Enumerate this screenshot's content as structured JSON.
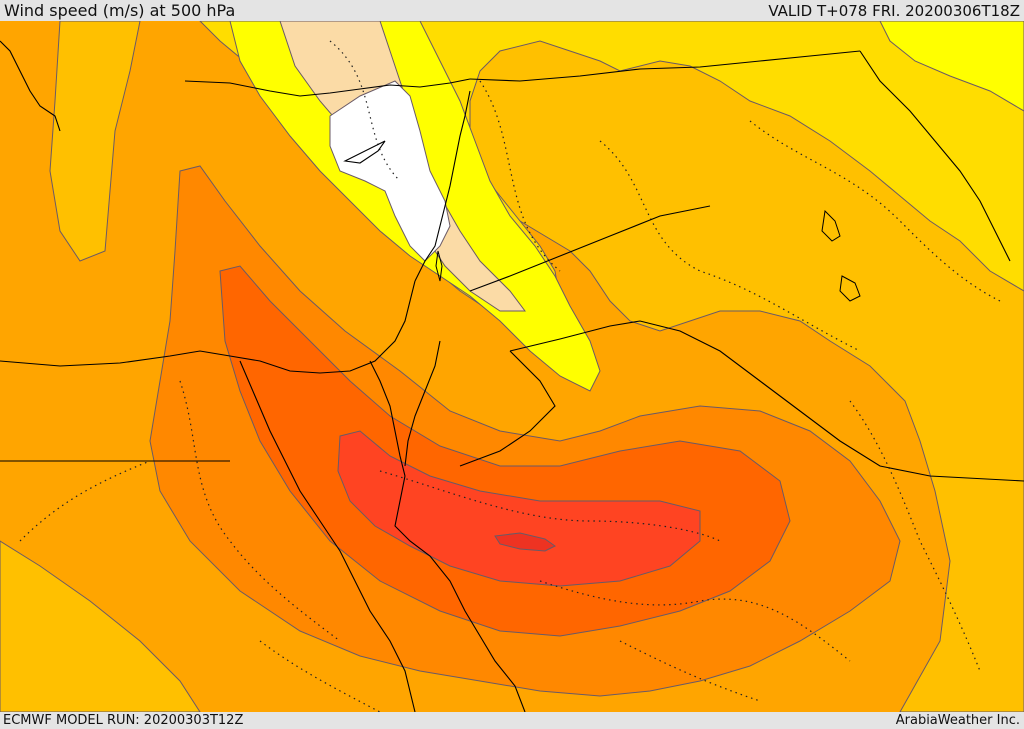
{
  "header": {
    "title": "Wind speed (m/s) at 500 hPa",
    "valid_time": "VALID T+078 FRI. 20200306T18Z"
  },
  "footer": {
    "model_run": "ECMWF MODEL RUN: 20200303T12Z",
    "provider": "ArabiaWeather Inc."
  },
  "colors": {
    "background": "#ffa500",
    "band_light_yellow": "#ffff00",
    "band_yellow": "#ffdd00",
    "band_gold": "#ffc000",
    "band_orange": "#ffa500",
    "band_dark_orange": "#ff8800",
    "band_red_orange": "#ff6600",
    "band_red": "#ff4422",
    "band_deep_red": "#ee3322",
    "band_peach": "#fbdba6",
    "band_white": "#ffffff"
  }
}
